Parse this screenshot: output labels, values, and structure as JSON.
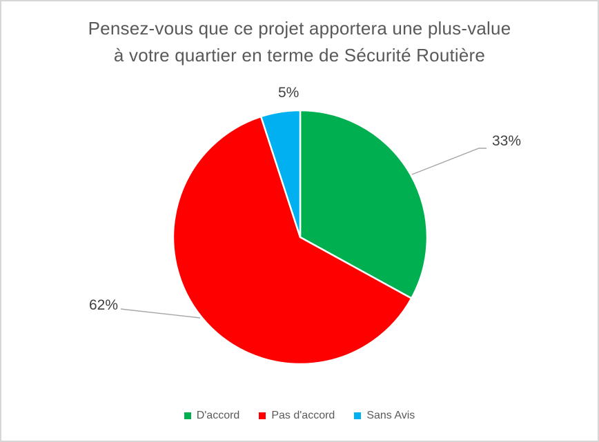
{
  "frame": {
    "border_color": "#D6D6D6",
    "background_color": "#FFFFFF"
  },
  "title": {
    "line1": "Pensez-vous que ce projet apportera une plus-value",
    "line2": "à votre quartier en terme de Sécurité Routière",
    "color": "#595959"
  },
  "chart_data": {
    "type": "pie",
    "title": "Pensez-vous que ce projet apportera une plus-value à votre quartier en terme de Sécurité Routière",
    "categories": [
      "D'accord",
      "Pas d'accord",
      "Sans Avis"
    ],
    "values": [
      33,
      62,
      5
    ],
    "unit": "percent",
    "slices": [
      {
        "label": "D'accord",
        "value": 33,
        "pct_label": "33%",
        "color": "#00B050"
      },
      {
        "label": "Pas d'accord",
        "value": 62,
        "pct_label": "62%",
        "color": "#FF0000"
      },
      {
        "label": "Sans Avis",
        "value": 5,
        "pct_label": "5%",
        "color": "#00B0F0"
      }
    ],
    "start_angle_deg": 0,
    "direction": "clockwise",
    "legend_position": "bottom",
    "slice_separator_color": "#FFFFFF",
    "leader_line_color": "#A6A6A6",
    "label_color": "#404040",
    "legend_text_color": "#595959"
  }
}
